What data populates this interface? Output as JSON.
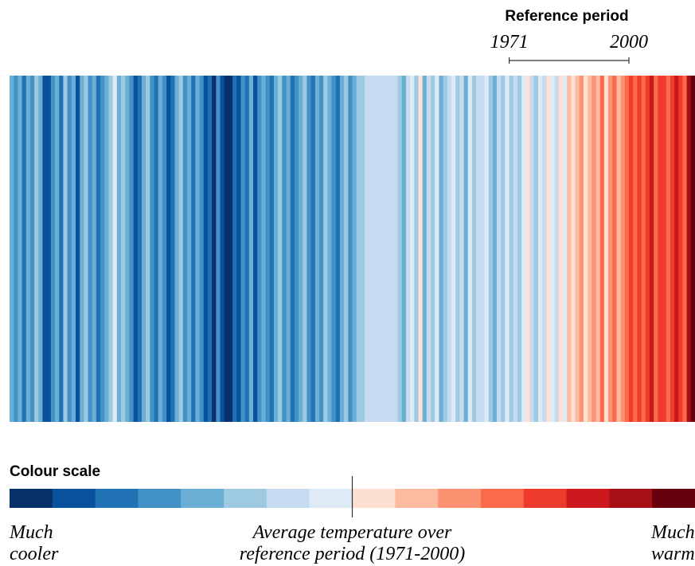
{
  "chart_data": {
    "type": "stripes",
    "reference_title": "Reference period",
    "reference_period": [
      1971,
      2000
    ],
    "xlim": [
      1850,
      2016
    ],
    "scale_title": "Colour scale",
    "scale_colors": [
      "#08306b",
      "#08519c",
      "#2171b5",
      "#4292c6",
      "#6baed6",
      "#9ecae1",
      "#c6dbef",
      "#deebf7",
      "#fee0d2",
      "#fcbba1",
      "#fc9272",
      "#fb6a4a",
      "#ef3b2c",
      "#cb181d",
      "#a50f15",
      "#67000d"
    ],
    "levels": [
      4,
      3,
      4,
      2,
      4,
      3,
      5,
      4,
      1,
      1,
      3,
      4,
      2,
      5,
      3,
      4,
      1,
      4,
      5,
      3,
      4,
      2,
      3,
      4,
      5,
      7,
      4,
      5,
      4,
      3,
      1,
      2,
      4,
      5,
      3,
      2,
      4,
      3,
      1,
      2,
      4,
      5,
      3,
      4,
      2,
      4,
      3,
      1,
      2,
      0,
      3,
      1,
      0,
      0,
      2,
      1,
      3,
      2,
      4,
      1,
      3,
      4,
      3,
      2,
      4,
      5,
      3,
      4,
      2,
      3,
      4,
      5,
      3,
      2,
      4,
      3,
      5,
      4,
      3,
      2,
      4,
      5,
      3,
      4,
      5,
      5,
      6,
      6,
      6,
      6,
      6,
      6,
      6,
      6,
      5,
      4,
      6,
      7,
      5,
      8,
      4,
      6,
      5,
      7,
      4,
      5,
      6,
      7,
      5,
      6,
      4,
      7,
      5,
      6,
      6,
      7,
      5,
      4,
      6,
      5,
      7,
      5,
      6,
      5,
      7,
      8,
      6,
      5,
      7,
      6,
      8,
      7,
      6,
      8,
      7,
      9,
      8,
      9,
      10,
      8,
      9,
      10,
      9,
      11,
      8,
      10,
      11,
      9,
      10,
      11,
      12,
      11,
      12,
      11,
      12,
      13,
      11,
      12,
      12,
      11,
      12,
      13,
      12,
      11,
      14,
      15
    ],
    "label_left": [
      "Much",
      "cooler"
    ],
    "label_middle": [
      "Average temperature over",
      "reference period (1971-2000)"
    ],
    "label_right": [
      "Much",
      "warmer"
    ]
  }
}
